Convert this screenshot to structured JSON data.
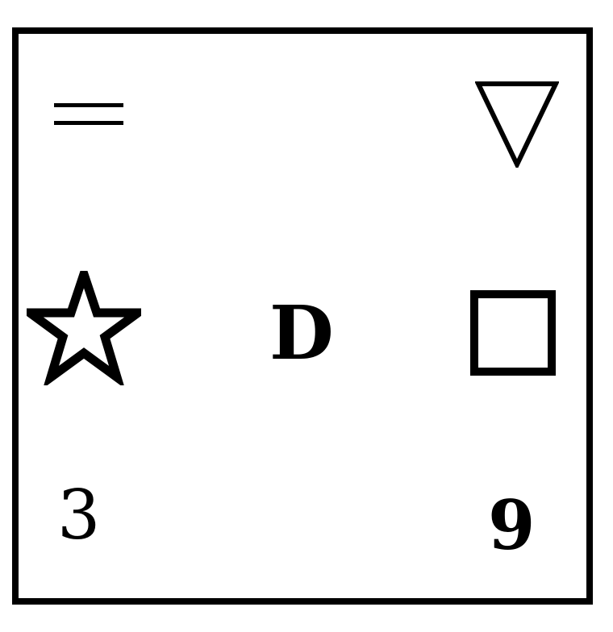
{
  "symbols": {
    "top_left": "equals-icon",
    "top_right": "down-triangle-icon",
    "middle_left": "star-icon",
    "center_letter": "D",
    "middle_right": "square-icon",
    "bottom_left_digit": "3",
    "bottom_right_digit": "9"
  },
  "colors": {
    "stroke": "#000000",
    "background": "#ffffff"
  }
}
